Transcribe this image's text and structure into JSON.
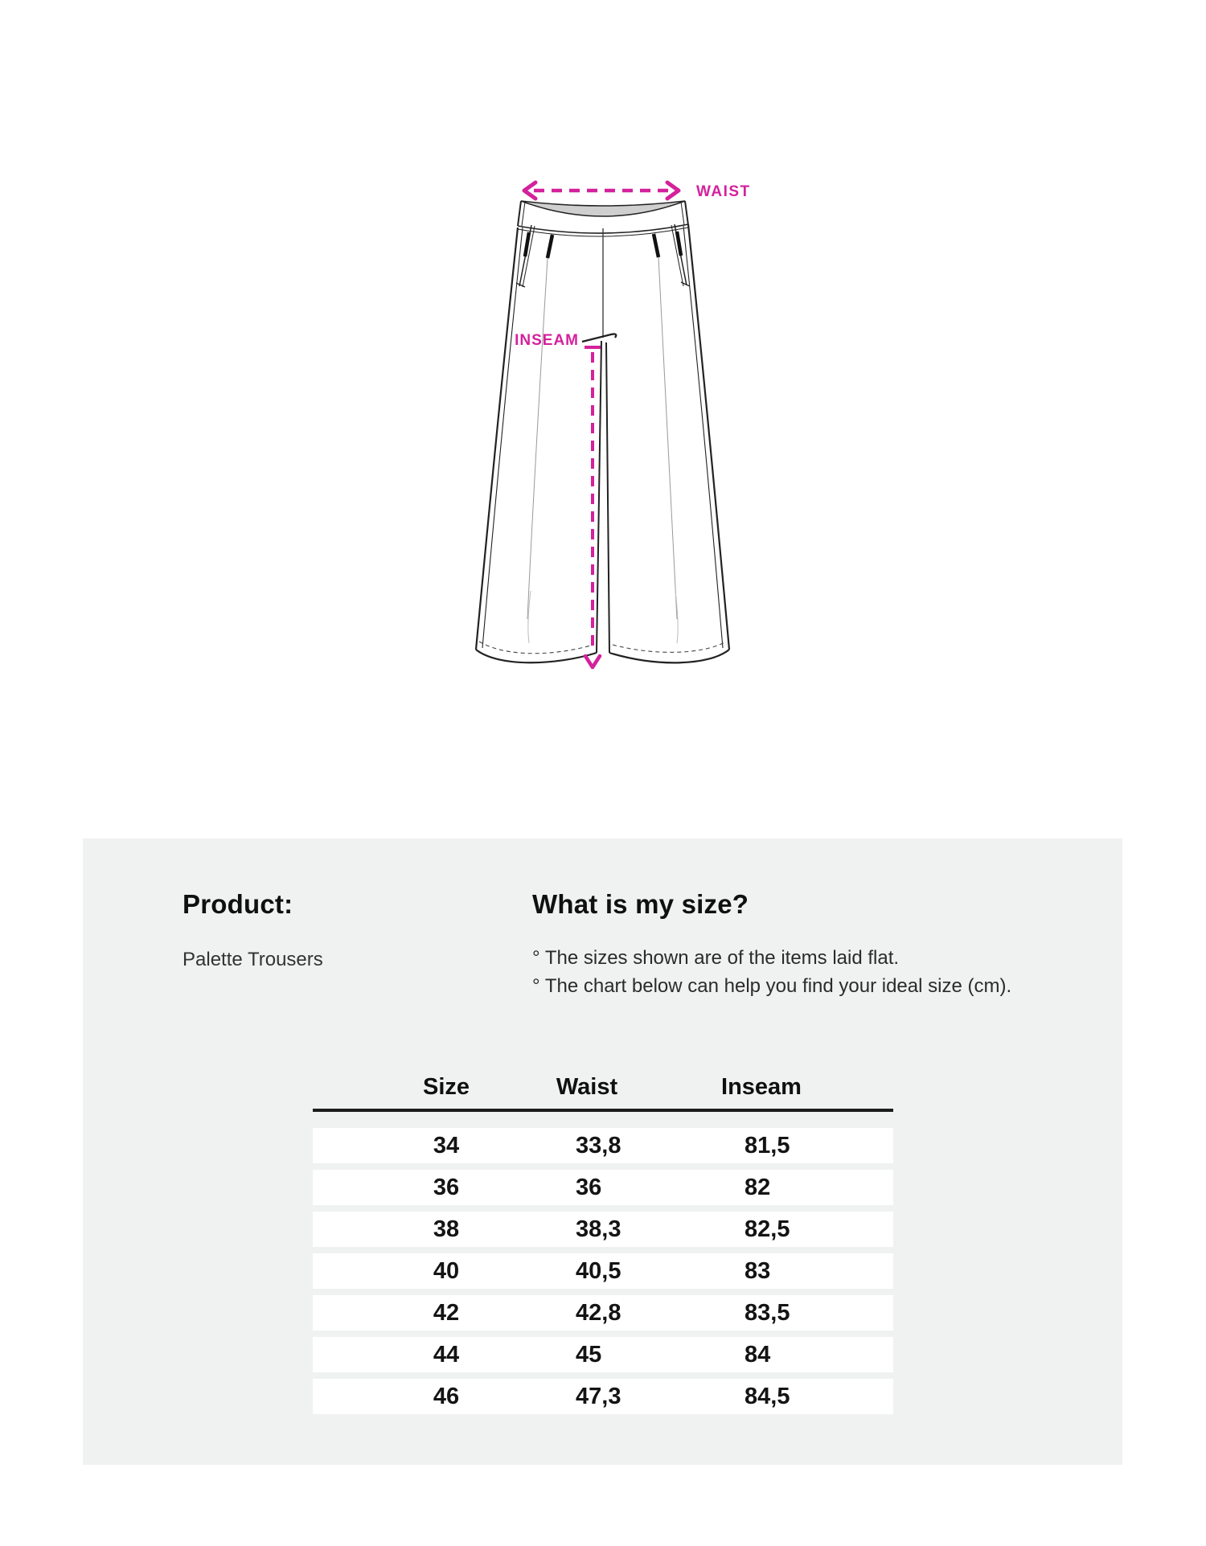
{
  "diagram": {
    "waist_label": "WAIST",
    "inseam_label": "INSEAM",
    "accent_color": "#d4219c"
  },
  "panel": {
    "product_heading": "Product:",
    "product_name": "Palette Trousers",
    "size_heading": "What is my size?",
    "notes": [
      "° The sizes shown are of the items laid flat.",
      "° The chart below can help you find your ideal size (cm)."
    ]
  },
  "size_table": {
    "columns": [
      "Size",
      "Waist",
      "Inseam"
    ],
    "rows": [
      [
        "34",
        "33,8",
        "81,5"
      ],
      [
        "36",
        "36",
        "82"
      ],
      [
        "38",
        "38,3",
        "82,5"
      ],
      [
        "40",
        "40,5",
        "83"
      ],
      [
        "42",
        "42,8",
        "83,5"
      ],
      [
        "44",
        "45",
        "84"
      ],
      [
        "46",
        "47,3",
        "84,5"
      ]
    ]
  }
}
